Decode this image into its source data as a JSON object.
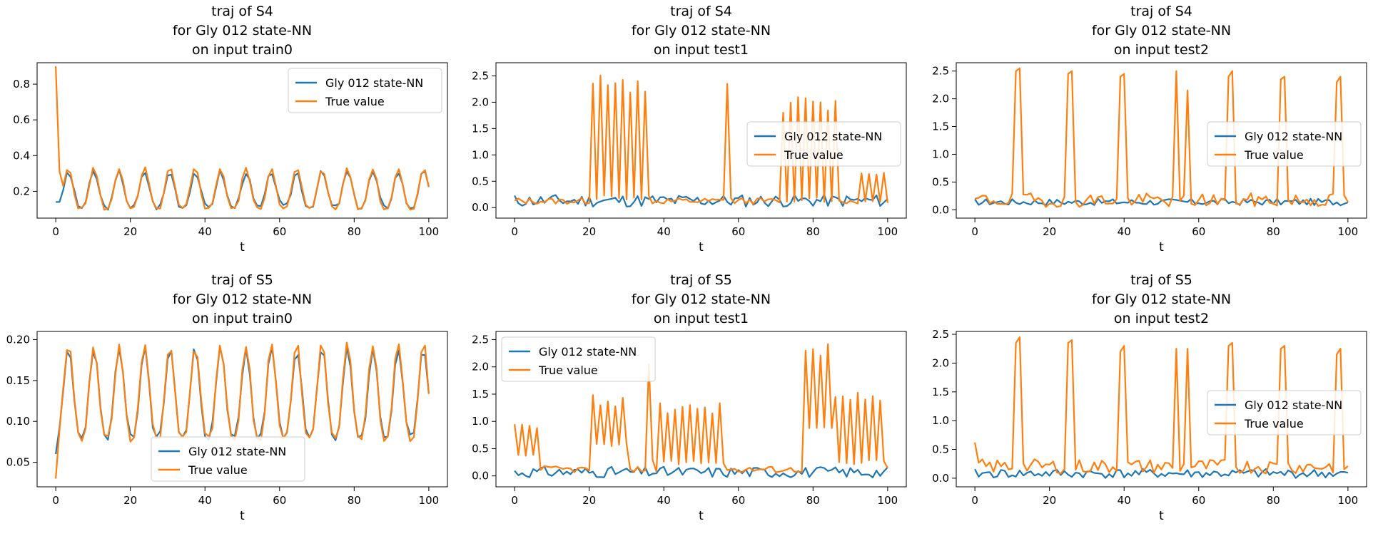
{
  "figure": {
    "grid": "2x3"
  },
  "chart_data": [
    {
      "type": "line",
      "title": [
        "traj of S4",
        "for Gly 012 state-NN",
        "on input train0"
      ],
      "xlabel": "t",
      "ylabel": "",
      "xlim": [
        -5,
        105
      ],
      "ylim": [
        0.05,
        0.92
      ],
      "xticks": [
        0,
        20,
        40,
        60,
        80,
        100
      ],
      "yticks": [
        0.2,
        0.4,
        0.6,
        0.8
      ],
      "ytick_labels": [
        "0.2",
        "0.4",
        "0.6",
        "0.8"
      ],
      "grid": false,
      "legend_position": "upper right",
      "series": [
        {
          "name": "Gly 012 state-NN",
          "color": "#1f77b4",
          "kind": "periodic",
          "start": 0.14,
          "base": 0.11,
          "peak": 0.31,
          "period": 6.8,
          "seed": 3,
          "noise": 0.015
        },
        {
          "name": "True value",
          "color": "#ff7f0e",
          "kind": "decay-periodic",
          "start": 0.9,
          "base": 0.1,
          "peak": 0.33,
          "period": 6.8,
          "seed": 5,
          "noise": 0.01
        }
      ]
    },
    {
      "type": "line",
      "title": [
        "traj of S4",
        "for Gly 012 state-NN",
        "on input test1"
      ],
      "xlabel": "t",
      "ylabel": "",
      "xlim": [
        -5,
        105
      ],
      "ylim": [
        -0.2,
        2.75
      ],
      "xticks": [
        0,
        20,
        40,
        60,
        80,
        100
      ],
      "yticks": [
        0.0,
        0.5,
        1.0,
        1.5,
        2.0,
        2.5
      ],
      "ytick_labels": [
        "0.0",
        "0.5",
        "1.0",
        "1.5",
        "2.0",
        "2.5"
      ],
      "grid": false,
      "legend_position": "center right",
      "series": [
        {
          "name": "Gly 012 state-NN",
          "color": "#1f77b4",
          "kind": "noise",
          "mean": 0.13,
          "amp": 0.12,
          "seed": 11
        },
        {
          "name": "True value",
          "color": "#ff7f0e",
          "kind": "bursts",
          "low": 0.1,
          "seed": 13,
          "bursts": [
            [
              21,
              36,
              2.55,
              0.15
            ],
            [
              57,
              58,
              2.55,
              0.1
            ],
            [
              72,
              86,
              2.1,
              0.1
            ],
            [
              93,
              99,
              0.7,
              0.1
            ]
          ]
        }
      ]
    },
    {
      "type": "line",
      "title": [
        "traj of S4",
        "for Gly 012 state-NN",
        "on input test2"
      ],
      "xlabel": "t",
      "ylabel": "",
      "xlim": [
        -5,
        105
      ],
      "ylim": [
        -0.15,
        2.65
      ],
      "xticks": [
        0,
        20,
        40,
        60,
        80,
        100
      ],
      "yticks": [
        0.0,
        0.5,
        1.0,
        1.5,
        2.0,
        2.5
      ],
      "ytick_labels": [
        "0.0",
        "0.5",
        "1.0",
        "1.5",
        "2.0",
        "2.5"
      ],
      "grid": false,
      "legend_position": "center right",
      "series": [
        {
          "name": "Gly 012 state-NN",
          "color": "#1f77b4",
          "kind": "noise",
          "mean": 0.14,
          "amp": 0.06,
          "seed": 17
        },
        {
          "name": "True value",
          "color": "#ff7f0e",
          "kind": "spikes",
          "low": 0.15,
          "seed": 19,
          "spikes": [
            [
              11,
              2.5
            ],
            [
              12,
              2.55
            ],
            [
              25,
              2.45
            ],
            [
              26,
              2.5
            ],
            [
              39,
              2.4
            ],
            [
              40,
              2.45
            ],
            [
              54,
              2.5
            ],
            [
              57,
              2.15
            ],
            [
              68,
              2.4
            ],
            [
              69,
              2.5
            ],
            [
              82,
              2.35
            ],
            [
              83,
              2.4
            ],
            [
              97,
              2.3
            ],
            [
              98,
              2.4
            ]
          ]
        }
      ]
    },
    {
      "type": "line",
      "title": [
        "traj of S5",
        "for Gly 012 state-NN",
        "on input train0"
      ],
      "xlabel": "t",
      "ylabel": "",
      "xlim": [
        -5,
        105
      ],
      "ylim": [
        0.02,
        0.21
      ],
      "xticks": [
        0,
        20,
        40,
        60,
        80,
        100
      ],
      "yticks": [
        0.05,
        0.1,
        0.15,
        0.2
      ],
      "ytick_labels": [
        "0.05",
        "0.10",
        "0.15",
        "0.20"
      ],
      "grid": false,
      "legend_position": "lower center",
      "series": [
        {
          "name": "Gly 012 state-NN",
          "color": "#1f77b4",
          "kind": "periodic",
          "start": 0.06,
          "base": 0.08,
          "peak": 0.19,
          "period": 6.8,
          "seed": 23,
          "noise": 0.004
        },
        {
          "name": "True value",
          "color": "#ff7f0e",
          "kind": "periodic",
          "start": 0.03,
          "base": 0.078,
          "peak": 0.195,
          "period": 6.8,
          "seed": 29,
          "noise": 0.004
        }
      ]
    },
    {
      "type": "line",
      "title": [
        "traj of S5",
        "for Gly 012 state-NN",
        "on input test1"
      ],
      "xlabel": "t",
      "ylabel": "",
      "xlim": [
        -5,
        105
      ],
      "ylim": [
        -0.2,
        2.65
      ],
      "xticks": [
        0,
        20,
        40,
        60,
        80,
        100
      ],
      "yticks": [
        0.0,
        0.5,
        1.0,
        1.5,
        2.0,
        2.5
      ],
      "ytick_labels": [
        "0.0",
        "0.5",
        "1.0",
        "1.5",
        "2.0",
        "2.5"
      ],
      "grid": false,
      "legend_position": "upper left",
      "series": [
        {
          "name": "Gly 012 state-NN",
          "color": "#1f77b4",
          "kind": "noise",
          "mean": 0.07,
          "amp": 0.1,
          "seed": 31
        },
        {
          "name": "True value",
          "color": "#ff7f0e",
          "kind": "bursts",
          "low": 0.1,
          "seed": 37,
          "bursts": [
            [
              0,
              6,
              0.95,
              0.3
            ],
            [
              21,
              30,
              1.5,
              0.5
            ],
            [
              36,
              37,
              2.3,
              0.2
            ],
            [
              39,
              56,
              1.35,
              0.2
            ],
            [
              78,
              86,
              2.5,
              0.8
            ],
            [
              86,
              99,
              1.6,
              0.2
            ]
          ]
        }
      ]
    },
    {
      "type": "line",
      "title": [
        "traj of S5",
        "for Gly 012 state-NN",
        "on input test2"
      ],
      "xlabel": "t",
      "ylabel": "",
      "xlim": [
        -5,
        105
      ],
      "ylim": [
        -0.15,
        2.55
      ],
      "xticks": [
        0,
        20,
        40,
        60,
        80,
        100
      ],
      "yticks": [
        0.0,
        0.5,
        1.0,
        1.5,
        2.0,
        2.5
      ],
      "ytick_labels": [
        "0.0",
        "0.5",
        "1.0",
        "1.5",
        "2.0",
        "2.5"
      ],
      "grid": false,
      "legend_position": "center right",
      "series": [
        {
          "name": "Gly 012 state-NN",
          "color": "#1f77b4",
          "kind": "noise",
          "mean": 0.08,
          "amp": 0.08,
          "seed": 41
        },
        {
          "name": "True value",
          "color": "#ff7f0e",
          "kind": "spikes",
          "low": 0.18,
          "seed": 43,
          "start": 0.62,
          "spikes": [
            [
              11,
              2.35
            ],
            [
              12,
              2.45
            ],
            [
              25,
              2.35
            ],
            [
              26,
              2.4
            ],
            [
              39,
              2.2
            ],
            [
              40,
              2.3
            ],
            [
              54,
              2.25
            ],
            [
              57,
              2.25
            ],
            [
              68,
              2.3
            ],
            [
              69,
              2.35
            ],
            [
              82,
              2.25
            ],
            [
              83,
              2.3
            ],
            [
              97,
              2.15
            ],
            [
              98,
              2.25
            ]
          ]
        }
      ]
    }
  ]
}
